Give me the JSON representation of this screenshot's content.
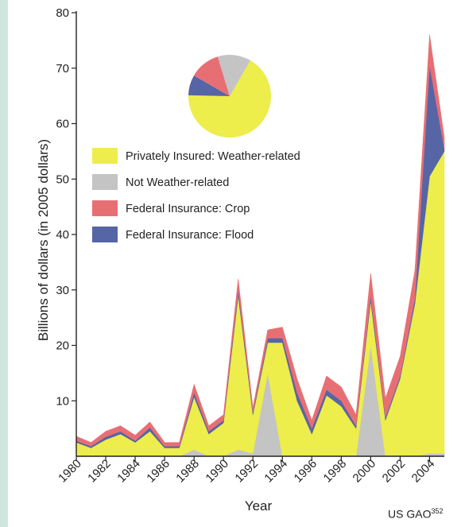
{
  "chart_data": {
    "type": "area",
    "stacked": true,
    "xlabel": "Year",
    "ylabel": "Billions of dollars (in 2005 dollars)",
    "ylim": [
      0,
      80
    ],
    "xlim": [
      1980,
      2005
    ],
    "y_ticks": [
      10,
      20,
      30,
      40,
      50,
      60,
      70,
      80
    ],
    "x_ticks": [
      1980,
      1982,
      1984,
      1986,
      1988,
      1990,
      1992,
      1994,
      1996,
      1998,
      2000,
      2002,
      2004
    ],
    "grid": false,
    "legend_position": "top-left",
    "x": [
      1980,
      1981,
      1982,
      1983,
      1984,
      1985,
      1986,
      1987,
      1988,
      1989,
      1990,
      1991,
      1992,
      1993,
      1994,
      1995,
      1996,
      1997,
      1998,
      1999,
      2000,
      2001,
      2002,
      2003,
      2004,
      2005
    ],
    "series": [
      {
        "name": "Not Weather-related",
        "color": "#c4c4c4",
        "values": [
          0,
          0,
          0,
          0,
          0,
          0,
          0,
          0,
          1.2,
          0,
          0,
          1.2,
          0.5,
          15,
          0,
          0,
          0,
          0,
          0,
          0,
          20,
          0,
          0,
          0,
          0.5,
          0.5
        ]
      },
      {
        "name": "Privately Insured: Weather-related",
        "color": "#eded4c",
        "values": [
          2.5,
          1.5,
          3,
          4,
          2.5,
          4.5,
          1.5,
          1.5,
          9.5,
          4,
          6,
          27.8,
          7,
          5.5,
          20.5,
          10,
          4,
          11,
          9,
          5,
          8,
          6.5,
          14,
          27.5,
          50,
          54.5
        ]
      },
      {
        "name": "Federal Insurance: Flood",
        "color": "#5665a6",
        "values": [
          0.3,
          0.3,
          0.5,
          0.5,
          0.3,
          0.7,
          0.3,
          0.3,
          0.8,
          0.5,
          0.5,
          1,
          0.5,
          0.8,
          0.8,
          1.5,
          1,
          1,
          1,
          0.5,
          1,
          0.5,
          0.5,
          1,
          20,
          0.5
        ]
      },
      {
        "name": "Federal Insurance: Crop",
        "color": "#e76f74",
        "values": [
          0.8,
          0.7,
          1,
          1,
          1,
          1,
          0.7,
          0.7,
          1.5,
          1,
          1,
          2,
          0.8,
          1.5,
          2,
          2.5,
          1.5,
          2.5,
          2.5,
          2,
          4,
          3.5,
          3.5,
          5,
          5.5,
          2
        ]
      }
    ],
    "inset_pie": {
      "slices": [
        {
          "name": "Privately Insured: Weather-related",
          "percent": 67,
          "color": "#eded4c"
        },
        {
          "name": "Federal Insurance: Flood",
          "percent": 8,
          "color": "#5665a6"
        },
        {
          "name": "Federal Insurance: Crop",
          "percent": 12,
          "color": "#e76f74"
        },
        {
          "name": "Not Weather-related",
          "percent": 13,
          "color": "#c4c4c4"
        }
      ]
    },
    "legend": [
      {
        "label": "Privately Insured: Weather-related",
        "color": "#eded4c"
      },
      {
        "label": "Not Weather-related",
        "color": "#c4c4c4"
      },
      {
        "label": "Federal Insurance: Crop",
        "color": "#e76f74"
      },
      {
        "label": "Federal Insurance: Flood",
        "color": "#5665a6"
      }
    ]
  },
  "credit": {
    "text": "US GAO",
    "ref": "352"
  }
}
